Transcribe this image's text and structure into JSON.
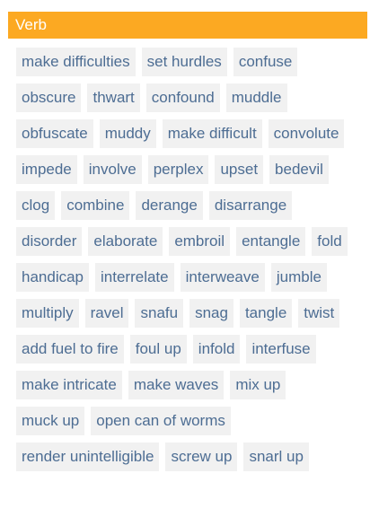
{
  "section": {
    "title": "Verb",
    "header_color": "#fca922",
    "text_color": "#4d6d93",
    "chip_bg": "#f1f1f1"
  },
  "words": [
    "make difficulties",
    "set hurdles",
    "confuse",
    "obscure",
    "thwart",
    "confound",
    "muddle",
    "obfuscate",
    "muddy",
    "make difficult",
    "convolute",
    "impede",
    "involve",
    "perplex",
    "upset",
    "bedevil",
    "clog",
    "combine",
    "derange",
    "disarrange",
    "disorder",
    "elaborate",
    "embroil",
    "entangle",
    "fold",
    "handicap",
    "interrelate",
    "interweave",
    "jumble",
    "multiply",
    "ravel",
    "snafu",
    "snag",
    "tangle",
    "twist",
    "add fuel to fire",
    "foul up",
    "infold",
    "interfuse",
    "make intricate",
    "make waves",
    "mix up",
    "muck up",
    "open can of worms",
    "render unintelligible",
    "screw up",
    "snarl up"
  ]
}
